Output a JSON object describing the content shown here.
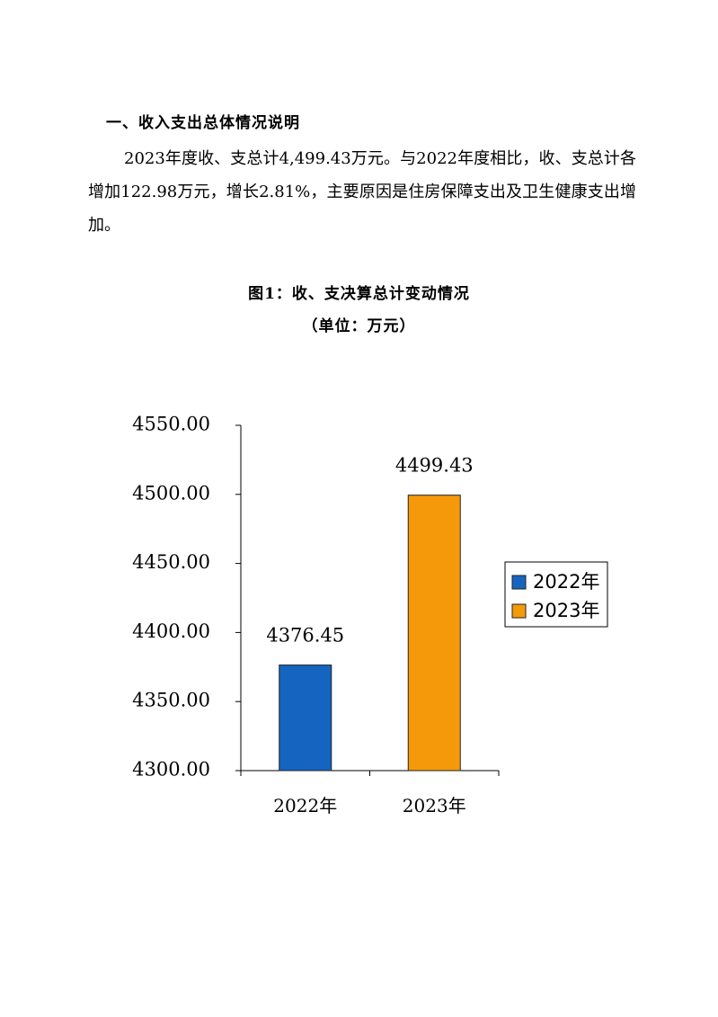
{
  "section": {
    "heading": "一、收入支出总体情况说明",
    "paragraph": "2023年度收、支总计4,499.43万元。与2022年度相比，收、支总计各增加122.98万元，增长2.81%，主要原因是住房保障支出及卫生健康支出增加。"
  },
  "chart_data": {
    "type": "bar",
    "title": "图1：收、支决算总计变动情况",
    "subtitle": "（单位：万元）",
    "categories": [
      "2022年",
      "2023年"
    ],
    "values": [
      4376.45,
      4499.43
    ],
    "data_labels": [
      "4376.45",
      "4499.43"
    ],
    "colors": [
      "#1565C0",
      "#F5990B"
    ],
    "ylim": [
      4300,
      4550
    ],
    "yticks": [
      4300,
      4350,
      4400,
      4450,
      4500,
      4550
    ],
    "ytick_labels": [
      "4300.00",
      "4350.00",
      "4400.00",
      "4450.00",
      "4500.00",
      "4550.00"
    ],
    "legend": [
      "2022年",
      "2023年"
    ],
    "legend_position": "right",
    "grid": false
  }
}
